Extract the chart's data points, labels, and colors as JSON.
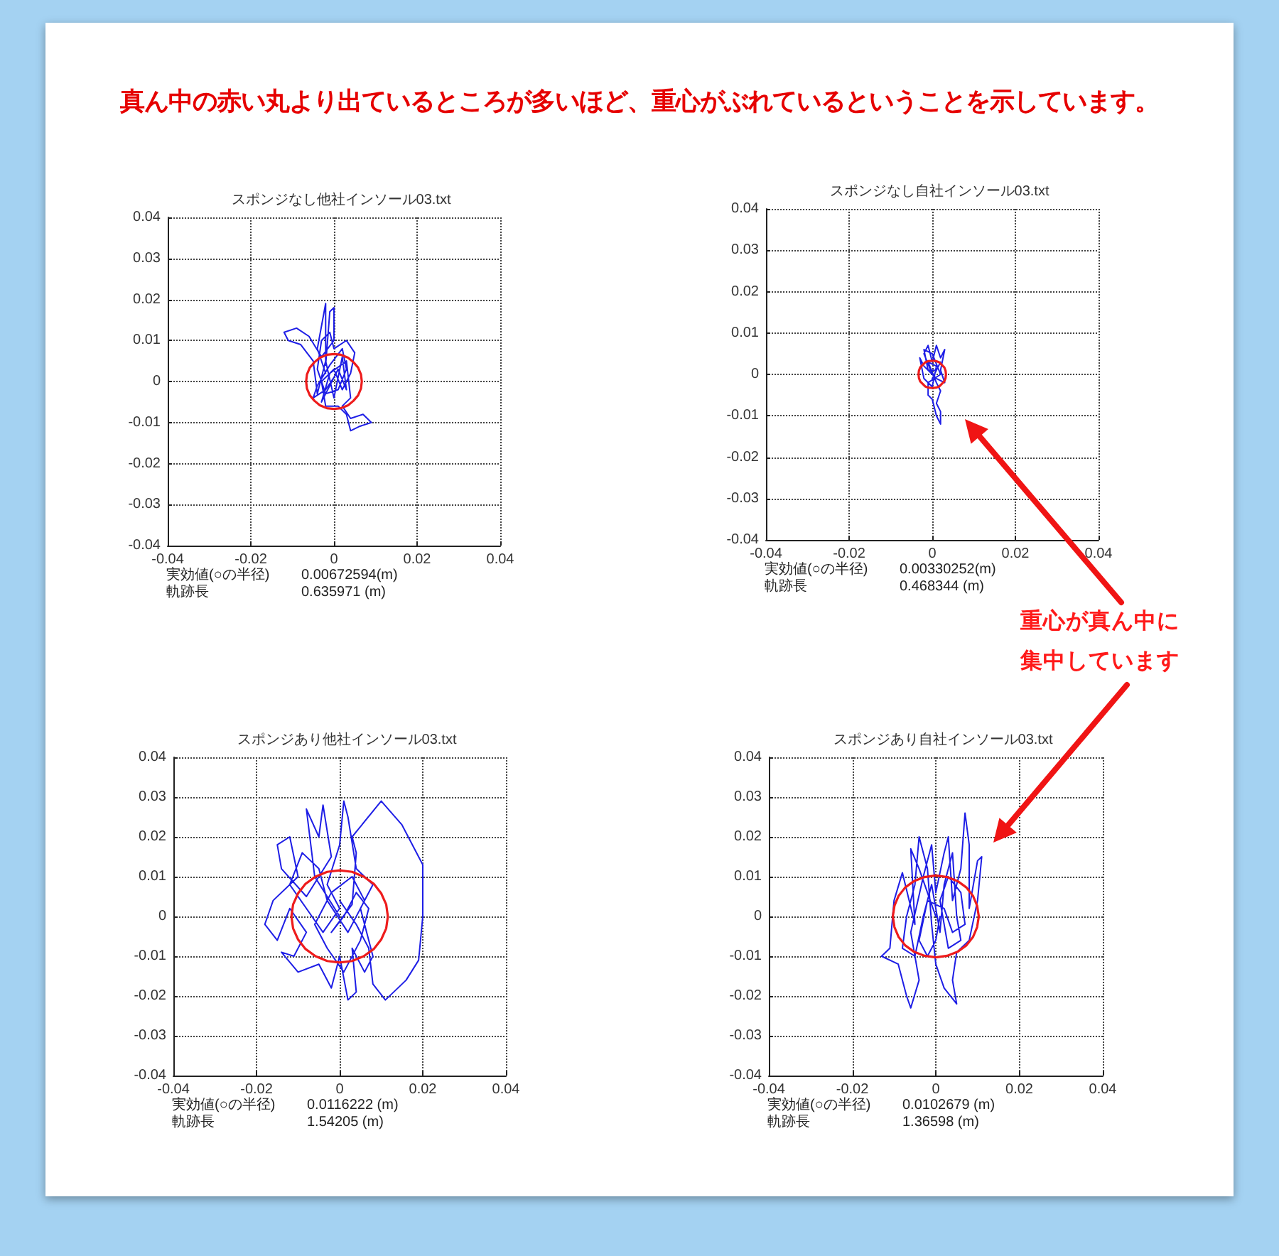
{
  "chart_data": [
    {
      "type": "other",
      "title": "真ん中の赤い丸より出ているところが多いほど、重心がぶれているということを示しています。"
    },
    {
      "type": "line",
      "title": "スポンジなし他社インソール03.txt",
      "xlim": [
        -0.04,
        0.04
      ],
      "ylim": [
        -0.04,
        0.04
      ],
      "xticks": [
        -0.04,
        -0.02,
        0,
        0.02,
        0.04
      ],
      "yticks": [
        -0.04,
        -0.03,
        -0.02,
        -0.01,
        0,
        0.01,
        0.02,
        0.03,
        0.04
      ],
      "grid": true,
      "series": [
        {
          "color": "#1e1ee6",
          "x": [
            -0.002,
            -0.004,
            -0.002,
            -0.002,
            -0.001,
            0,
            0,
            -0.003,
            -0.006,
            -0.009,
            -0.012,
            -0.011,
            -0.008,
            -0.005,
            -0.004,
            -0.002,
            0,
            0.002,
            0.003,
            0.001,
            -0.003,
            -0.001,
            0.003,
            0.004,
            0.002,
            0.004,
            0.007,
            0.009,
            0.006,
            0.004,
            0.003,
            0.001,
            -0.002,
            -0.003,
            0,
            0.002,
            0.004,
            0.005,
            0.003,
            0,
            -0.001,
            -0.003,
            -0.004,
            -0.002,
            0.001,
            0.003,
            0.002,
            -0.001,
            -0.004,
            -0.005,
            -0.002,
            0
          ],
          "values": [
            0.002,
            0.008,
            0.019,
            0.004,
            0.017,
            0.018,
            0.01,
            0.006,
            0.011,
            0.013,
            0.012,
            0.01,
            0.009,
            0.005,
            -0.003,
            0.005,
            -0.004,
            0.006,
            -0.002,
            0.003,
            -0.005,
            0.002,
            0.005,
            -0.004,
            -0.006,
            -0.009,
            -0.008,
            -0.01,
            -0.011,
            -0.012,
            -0.008,
            -0.006,
            -0.006,
            0,
            0.003,
            -0.002,
            0.002,
            0.007,
            0.01,
            0.008,
            0.012,
            0.01,
            0.003,
            -0.003,
            -0.002,
            0.003,
            0.008,
            0.004,
            -0.001,
            -0.004,
            -0.002,
            0.001
          ]
        },
        {
          "color": "#ee1c1c",
          "x": [
            0.0067,
            0.0065,
            0.0058,
            0.0047,
            0.0034,
            0.0017,
            0,
            -0.0017,
            -0.0034,
            -0.0047,
            -0.0058,
            -0.0065,
            -0.0067,
            -0.0065,
            -0.0058,
            -0.0047,
            -0.0034,
            -0.0017,
            0,
            0.0017,
            0.0034,
            0.0047,
            0.0058,
            0.0065,
            0.0067,
            0.0065
          ],
          "values": [
            0,
            0.0017,
            0.0034,
            0.0047,
            0.0058,
            0.0065,
            0.0067,
            0.0065,
            0.0058,
            0.0047,
            0.0034,
            0.0017,
            0,
            -0.0017,
            -0.0034,
            -0.0047,
            -0.0058,
            -0.0065,
            -0.0067,
            -0.0065,
            -0.0058,
            -0.0047,
            -0.0034,
            -0.0017,
            0,
            0.0017
          ]
        }
      ],
      "annotations": [
        "実効値(○の半径)",
        "0.00672594(m)",
        "軌跡長",
        "0.635971 (m)"
      ]
    },
    {
      "type": "line",
      "title": "スポンジなし自社インソール03.txt",
      "xlim": [
        -0.04,
        0.04
      ],
      "ylim": [
        -0.04,
        0.04
      ],
      "xticks": [
        -0.04,
        -0.02,
        0,
        0.02,
        0.04
      ],
      "yticks": [
        -0.04,
        -0.03,
        -0.02,
        -0.01,
        0,
        0.01,
        0.02,
        0.03,
        0.04
      ],
      "grid": true,
      "series": [
        {
          "color": "#1e1ee6",
          "x": [
            0,
            -0.002,
            -0.001,
            0,
            0.001,
            0.002,
            0.003,
            0.002,
            0.003,
            0.001,
            -0.002,
            -0.003,
            -0.002,
            0,
            0.001,
            -0.001,
            0.001,
            0.002,
            0.001,
            0.002,
            0.002,
            0.001,
            0,
            -0.001,
            -0.001,
            0.002,
            0,
            -0.002,
            -0.001,
            0.001,
            0.002,
            0
          ],
          "values": [
            0,
            0.005,
            0.007,
            0.003,
            0.007,
            0.004,
            0.006,
            0.001,
            -0.002,
            -0.001,
            0.002,
            0.004,
            -0.001,
            -0.003,
            0.002,
            0.003,
            -0.002,
            -0.004,
            -0.007,
            -0.009,
            -0.012,
            -0.01,
            -0.006,
            -0.005,
            -0.002,
            0,
            0.005,
            0.006,
            0.001,
            0.001,
            0.003,
            -0.001
          ]
        },
        {
          "color": "#ee1c1c",
          "x": [
            0.0033,
            0.0032,
            0.0029,
            0.0023,
            0.0017,
            0.0009,
            0,
            -0.0009,
            -0.0017,
            -0.0023,
            -0.0029,
            -0.0032,
            -0.0033,
            -0.0032,
            -0.0029,
            -0.0023,
            -0.0017,
            -0.0009,
            0,
            0.0009,
            0.0017,
            0.0023,
            0.0029,
            0.0032,
            0.0033,
            0.0032
          ],
          "values": [
            0,
            0.0009,
            0.0017,
            0.0023,
            0.0029,
            0.0032,
            0.0033,
            0.0032,
            0.0029,
            0.0023,
            0.0017,
            0.0009,
            0,
            -0.0009,
            -0.0017,
            -0.0023,
            -0.0029,
            -0.0032,
            -0.0033,
            -0.0032,
            -0.0029,
            -0.0023,
            -0.0017,
            -0.0009,
            0,
            0.0009
          ]
        }
      ],
      "annotations": [
        "実効値(○の半径)",
        "0.00330252(m)",
        "軌跡長",
        "0.468344 (m)"
      ]
    },
    {
      "type": "other",
      "annotations": [
        "重心が真ん中に",
        "集中しています"
      ]
    },
    {
      "type": "line",
      "title": "スポンジあり他社インソール03.txt",
      "xlim": [
        -0.04,
        0.04
      ],
      "ylim": [
        -0.04,
        0.04
      ],
      "xticks": [
        -0.04,
        -0.02,
        0,
        0.02,
        0.04
      ],
      "yticks": [
        -0.04,
        -0.03,
        -0.02,
        -0.01,
        0,
        0.01,
        0.02,
        0.03,
        0.04
      ],
      "grid": true,
      "series": [
        {
          "color": "#1e1ee6",
          "x": [
            0,
            -0.006,
            -0.008,
            -0.005,
            -0.004,
            -0.002,
            -0.008,
            -0.014,
            -0.015,
            -0.012,
            -0.01,
            -0.016,
            -0.018,
            -0.015,
            -0.012,
            -0.008,
            -0.011,
            -0.014,
            -0.01,
            -0.005,
            -0.002,
            0,
            0.002,
            0.004,
            0.003,
            0.006,
            0.008,
            0.005,
            0.008,
            0.004,
            0.002,
            0.001,
            0,
            -0.003,
            0,
            -0.004,
            -0.008,
            -0.012,
            -0.009,
            -0.005,
            -0.003,
            0.002,
            0.006,
            0.003,
            -0.002,
            -0.006,
            -0.003,
            0.001,
            0.005,
            0.007,
            0.004,
            0.001,
            -0.002,
            0.003,
            0.004,
            0.003,
            0.01,
            0.015,
            0.02,
            0.02,
            0.019,
            0.016,
            0.011,
            0.008,
            0.007,
            0.004,
            0
          ],
          "values": [
            0,
            0.01,
            0.027,
            0.02,
            0.028,
            0.015,
            0.005,
            0.012,
            0.018,
            0.02,
            0.01,
            0.004,
            -0.002,
            -0.006,
            0.002,
            -0.004,
            -0.01,
            -0.009,
            -0.014,
            -0.012,
            -0.018,
            -0.01,
            -0.021,
            -0.019,
            -0.008,
            -0.014,
            -0.01,
            0.002,
            0.008,
            0.012,
            0.025,
            0.029,
            0.018,
            0.008,
            0.002,
            -0.004,
            0.002,
            0.008,
            0.016,
            0.012,
            0.004,
            -0.004,
            0.004,
            0.01,
            0.006,
            -0.002,
            -0.008,
            -0.014,
            -0.006,
            0.002,
            0.006,
            0,
            -0.004,
            0.003,
            0.016,
            0.02,
            0.029,
            0.023,
            0.013,
            0,
            -0.011,
            -0.016,
            -0.021,
            -0.017,
            -0.008,
            -0.002,
            0.004
          ]
        },
        {
          "color": "#ee1c1c",
          "x": [
            0.0116,
            0.0112,
            0.01,
            0.0082,
            0.0058,
            0.003,
            0,
            -0.003,
            -0.0058,
            -0.0082,
            -0.01,
            -0.0112,
            -0.0116,
            -0.0112,
            -0.01,
            -0.0082,
            -0.0058,
            -0.003,
            0,
            0.003,
            0.0058,
            0.0082,
            0.01,
            0.0112,
            0.0116,
            0.0112
          ],
          "values": [
            0,
            0.003,
            0.0058,
            0.0082,
            0.01,
            0.0112,
            0.0116,
            0.0112,
            0.01,
            0.0082,
            0.0058,
            0.003,
            0,
            -0.003,
            -0.0058,
            -0.0082,
            -0.01,
            -0.0112,
            -0.0116,
            -0.0112,
            -0.01,
            -0.0082,
            -0.0058,
            -0.003,
            0,
            0.003
          ]
        }
      ],
      "annotations": [
        "実効値(○の半径)",
        "0.0116222 (m)",
        "軌跡長",
        "1.54205 (m)"
      ]
    },
    {
      "type": "line",
      "title": "スポンジあり自社インソール03.txt",
      "xlim": [
        -0.04,
        0.04
      ],
      "ylim": [
        -0.04,
        0.04
      ],
      "xticks": [
        -0.04,
        -0.02,
        0,
        0.02,
        0.04
      ],
      "yticks": [
        -0.04,
        -0.03,
        -0.02,
        -0.01,
        0,
        0.01,
        0.02,
        0.03,
        0.04
      ],
      "grid": true,
      "series": [
        {
          "color": "#1e1ee6",
          "x": [
            0,
            -0.004,
            -0.006,
            -0.005,
            -0.008,
            -0.01,
            -0.011,
            -0.013,
            -0.009,
            -0.007,
            -0.006,
            -0.004,
            -0.006,
            -0.003,
            -0.001,
            0,
            0.002,
            0.003,
            0.004,
            0.006,
            0.007,
            0.008,
            0.008,
            0.01,
            0.011,
            0.01,
            0.008,
            0.005,
            0.004,
            0.005,
            0.002,
            0,
            -0.001,
            -0.002,
            -0.004,
            -0.005,
            -0.007,
            -0.008,
            -0.005,
            -0.003,
            -0.001,
            0.001,
            0.002,
            0.004,
            0.005,
            0.006,
            0.003,
            0.001,
            0.003,
            0.006,
            0.007,
            0.004,
            0.002,
            -0.002,
            -0.004,
            -0.002,
            0,
            0.001
          ],
          "values": [
            0,
            0.012,
            0.017,
            -0.002,
            0.011,
            0.004,
            -0.008,
            -0.01,
            -0.012,
            -0.02,
            -0.023,
            -0.016,
            -0.004,
            0.01,
            0.018,
            0.006,
            0.016,
            0.02,
            0.004,
            0.012,
            0.026,
            0.018,
            0.002,
            0.014,
            0.015,
            0.004,
            -0.006,
            -0.009,
            -0.016,
            -0.022,
            -0.018,
            -0.012,
            -0.002,
            0.012,
            0.02,
            0.008,
            0,
            -0.008,
            -0.01,
            0,
            0.008,
            -0.004,
            0.008,
            0.016,
            0,
            -0.006,
            -0.008,
            0.004,
            0.01,
            0.006,
            -0.002,
            -0.004,
            0.002,
            0.004,
            -0.006,
            -0.01,
            -0.006,
            0
          ]
        },
        {
          "color": "#ee1c1c",
          "x": [
            0.0103,
            0.0099,
            0.0089,
            0.0073,
            0.0052,
            0.0027,
            0,
            -0.0027,
            -0.0052,
            -0.0073,
            -0.0089,
            -0.0099,
            -0.0103,
            -0.0099,
            -0.0089,
            -0.0073,
            -0.0052,
            -0.0027,
            0,
            0.0027,
            0.0052,
            0.0073,
            0.0089,
            0.0099,
            0.0103,
            0.0099
          ],
          "values": [
            0,
            0.0027,
            0.0052,
            0.0073,
            0.0089,
            0.0099,
            0.0103,
            0.0099,
            0.0089,
            0.0073,
            0.0052,
            0.0027,
            0,
            -0.0027,
            -0.0052,
            -0.0073,
            -0.0089,
            -0.0099,
            -0.0103,
            -0.0099,
            -0.0089,
            -0.0073,
            -0.0052,
            -0.0027,
            0,
            0.0027
          ]
        }
      ],
      "annotations": [
        "実効値(○の半径)",
        "0.0102679 (m)",
        "軌跡長",
        "1.36598 (m)"
      ]
    }
  ]
}
